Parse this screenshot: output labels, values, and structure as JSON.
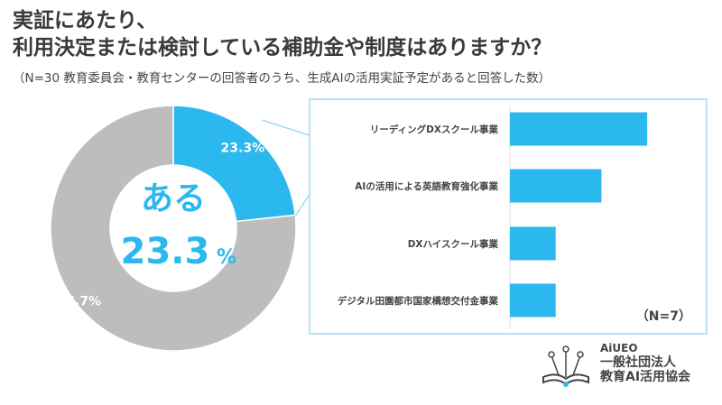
{
  "title": {
    "line1": "実証にあたり、",
    "line2": "利用決定または検討している補助金や制度はありますか？"
  },
  "subtitle": "（N=30 教育委員会・教育センターの回答者のうち、生成AIの活用実証予定があると回答した数）",
  "chart_data": [
    {
      "type": "pie",
      "donut": true,
      "slices": [
        {
          "label": "ある",
          "value": 23.3,
          "display": "23.3%",
          "color": "#2BB8EE"
        },
        {
          "value": 76.7,
          "display": "76.7%",
          "color": "#BDBDBD"
        }
      ],
      "center_label": "ある",
      "center_value": "23.3",
      "center_unit": "%"
    },
    {
      "type": "bar",
      "orientation": "horizontal",
      "categories": [
        "リーディングDXスクール事業",
        "AIの活用による英語教育強化事業",
        "DXハイスクール事業",
        "デジタル田園都市国家構想交付金事業"
      ],
      "values": [
        3,
        2,
        1,
        1
      ],
      "color": "#2BB8EE",
      "note": "（N=7）"
    }
  ],
  "logo": {
    "brand": "AiUEO",
    "line1": "一般社団法人",
    "line2": "教育AI活用協会"
  }
}
